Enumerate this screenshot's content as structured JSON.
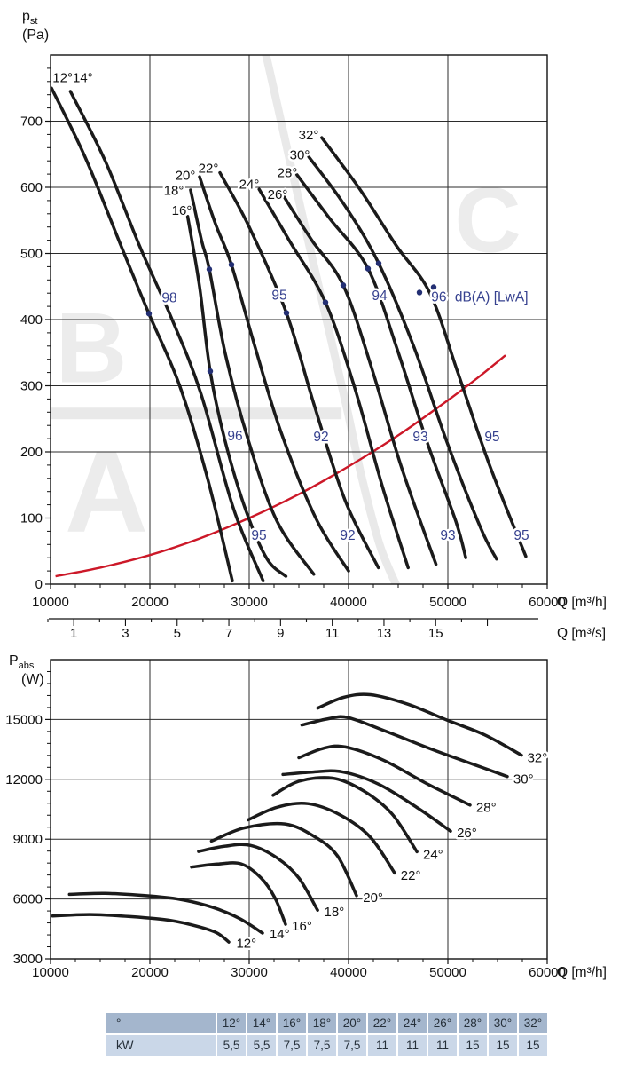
{
  "labels": {
    "pst_main": "p",
    "pst_sub": "st",
    "pst_unit": "(Pa)",
    "pabs_main": "P",
    "pabs_sub": "abs",
    "pabs_unit": "(W)"
  },
  "colors": {
    "curve": "#1b1b1b",
    "grid": "#2b2b2b",
    "border": "#111111",
    "red": "#cc1828",
    "blue": "#36418f",
    "dot": "#232f73",
    "zone": "#ececec",
    "band": "#e9e9e9",
    "table_header_bg": "#a4b6cd",
    "table_row_bg": "#cad7e8",
    "table_text": "#26303a"
  },
  "chart_data": [
    {
      "id": "pressure_chart",
      "type": "line",
      "title": "",
      "ylabel": "p_st (Pa)",
      "xlabel": "Q [m³/h]",
      "x2label": "Q [m³/s]",
      "xlim": [
        10000,
        60000
      ],
      "ylim": [
        0,
        800
      ],
      "grid": true,
      "xticks": [
        10000,
        20000,
        30000,
        40000,
        50000,
        60000
      ],
      "yticks": [
        0,
        100,
        200,
        300,
        400,
        500,
        600,
        700
      ],
      "x_minor_step": 2500,
      "y_minor_step": 20,
      "x2ticks": [
        1,
        3,
        5,
        7,
        9,
        11,
        13,
        15
      ],
      "series": [
        {
          "name": "12°",
          "points": [
            [
              10100,
              750
            ],
            [
              13500,
              645
            ],
            [
              17000,
              515
            ],
            [
              19900,
              409
            ],
            [
              23000,
              300
            ],
            [
              25800,
              160
            ],
            [
              28300,
              5
            ]
          ]
        },
        {
          "name": "14°",
          "points": [
            [
              12000,
              745
            ],
            [
              15500,
              640
            ],
            [
              19000,
              510
            ],
            [
              22100,
              405
            ],
            [
              25100,
              290
            ],
            [
              28400,
              115
            ],
            [
              31400,
              5
            ]
          ]
        },
        {
          "name": "16°",
          "points": [
            [
              23800,
              556
            ],
            [
              25000,
              450
            ],
            [
              26070,
              322
            ],
            [
              27600,
              215
            ],
            [
              29700,
              110
            ],
            [
              31800,
              38
            ],
            [
              33700,
              12
            ]
          ]
        },
        {
          "name": "18°",
          "points": [
            [
              24100,
              596
            ],
            [
              25200,
              520
            ],
            [
              25980,
              476
            ],
            [
              27600,
              348
            ],
            [
              29900,
              218
            ],
            [
              32800,
              95
            ],
            [
              36500,
              15
            ]
          ]
        },
        {
          "name": "20°",
          "points": [
            [
              25000,
              616
            ],
            [
              26600,
              545
            ],
            [
              28210,
              483
            ],
            [
              30600,
              358
            ],
            [
              33200,
              230
            ],
            [
              36700,
              100
            ],
            [
              40000,
              20
            ]
          ]
        },
        {
          "name": "22°",
          "points": [
            [
              27050,
              622
            ],
            [
              30000,
              540
            ],
            [
              33750,
              410
            ],
            [
              36600,
              268
            ],
            [
              39700,
              125
            ],
            [
              43000,
              25
            ]
          ]
        },
        {
          "name": "24°",
          "points": [
            [
              31000,
              597
            ],
            [
              34100,
              518
            ],
            [
              37680,
              426
            ],
            [
              40600,
              298
            ],
            [
              43400,
              148
            ],
            [
              46000,
              25
            ]
          ]
        },
        {
          "name": "26°",
          "points": [
            [
              33500,
              586
            ],
            [
              36300,
              520
            ],
            [
              39460,
              452
            ],
            [
              42300,
              328
            ],
            [
              45300,
              178
            ],
            [
              48800,
              30
            ]
          ]
        },
        {
          "name": "28°",
          "points": [
            [
              34800,
              619
            ],
            [
              38100,
              553
            ],
            [
              41960,
              477
            ],
            [
              44900,
              355
            ],
            [
              47900,
              215
            ],
            [
              50800,
              95
            ],
            [
              51800,
              40
            ]
          ]
        },
        {
          "name": "30°",
          "points": [
            [
              36000,
              646
            ],
            [
              39600,
              573
            ],
            [
              43040,
              485
            ],
            [
              46600,
              358
            ],
            [
              49900,
              215
            ],
            [
              53300,
              85
            ],
            [
              54900,
              38
            ]
          ]
        },
        {
          "name": "32°",
          "points": [
            [
              37300,
              675
            ],
            [
              41100,
              598
            ],
            [
              44800,
              512
            ],
            [
              48200,
              440
            ],
            [
              51000,
              320
            ],
            [
              54200,
              180
            ],
            [
              57850,
              42
            ]
          ]
        }
      ],
      "series_labels": [
        {
          "text": "12°14°",
          "q": 12232,
          "p": 766
        },
        {
          "text": "16°",
          "q": 23214,
          "p": 565
        },
        {
          "text": "18°",
          "q": 22411,
          "p": 595
        },
        {
          "text": "20°",
          "q": 23571,
          "p": 618
        },
        {
          "text": "22°",
          "q": 25893,
          "p": 629
        },
        {
          "text": "24°",
          "q": 30000,
          "p": 605
        },
        {
          "text": "26°",
          "q": 32857,
          "p": 589
        },
        {
          "text": "28°",
          "q": 33839,
          "p": 622
        },
        {
          "text": "30°",
          "q": 35089,
          "p": 649
        },
        {
          "text": "32°",
          "q": 35982,
          "p": 679
        }
      ],
      "system_curve": {
        "name": "system-resistance-curve",
        "points": [
          [
            10500,
            12
          ],
          [
            15000,
            25
          ],
          [
            20000,
            44
          ],
          [
            25000,
            69
          ],
          [
            30000,
            100
          ],
          [
            35000,
            136
          ],
          [
            40000,
            178
          ],
          [
            45000,
            225
          ],
          [
            50000,
            278
          ],
          [
            53000,
            312
          ],
          [
            55800,
            346
          ]
        ]
      },
      "noise_labels": [
        {
          "text": "98",
          "q": 21960,
          "p": 433
        },
        {
          "text": "95",
          "q": 33040,
          "p": 437
        },
        {
          "text": "94",
          "q": 43130,
          "p": 436
        },
        {
          "text": "96",
          "q": 49100,
          "p": 434
        },
        {
          "text": "dB(A) [LwA]",
          "q": 50700,
          "p": 434,
          "anchor": "start"
        },
        {
          "text": "96",
          "q": 28570,
          "p": 224
        },
        {
          "text": "92",
          "q": 37230,
          "p": 223
        },
        {
          "text": "93",
          "q": 47230,
          "p": 223
        },
        {
          "text": "95",
          "q": 54460,
          "p": 223
        },
        {
          "text": "95",
          "q": 30980,
          "p": 74
        },
        {
          "text": "92",
          "q": 39910,
          "p": 74
        },
        {
          "text": "93",
          "q": 50000,
          "p": 74
        },
        {
          "text": "95",
          "q": 57410,
          "p": 74
        }
      ],
      "noise_dots": [
        [
          19911,
          409
        ],
        [
          26071,
          322
        ],
        [
          25982,
          476
        ],
        [
          28214,
          483
        ],
        [
          33750,
          410
        ],
        [
          37679,
          426
        ],
        [
          39464,
          452
        ],
        [
          41964,
          477
        ],
        [
          43036,
          485
        ],
        [
          47143,
          441
        ],
        [
          48571,
          449
        ]
      ],
      "zones": {
        "letters": [
          {
            "text": "B",
            "q": 14107,
            "p": 357,
            "size": 112
          },
          {
            "text": "A",
            "q": 15625,
            "p": 140,
            "size": 130
          },
          {
            "text": "C",
            "q": 54018,
            "p": 550,
            "size": 104
          }
        ],
        "h_band": {
          "q1": 10000,
          "q2": 39300,
          "p": 258
        },
        "diag_band": [
          [
            31696,
            800
          ],
          [
            32857,
            723
          ],
          [
            34286,
            627
          ],
          [
            36161,
            505
          ],
          [
            38036,
            383
          ],
          [
            39821,
            267
          ],
          [
            41339,
            161
          ],
          [
            43125,
            60
          ],
          [
            44900,
            -5
          ]
        ]
      }
    },
    {
      "id": "power_chart",
      "type": "line",
      "title": "",
      "ylabel": "P_abs (W)",
      "xlabel": "Q [m³/h]",
      "xlim": [
        10000,
        60000
      ],
      "ylim": [
        3000,
        18000
      ],
      "grid": true,
      "xticks": [
        10000,
        20000,
        30000,
        40000,
        50000,
        60000
      ],
      "yticks": [
        3000,
        6000,
        9000,
        12000,
        15000
      ],
      "x_minor_step": 2500,
      "y_minor_step": 600,
      "series": [
        {
          "name": "12°",
          "points": [
            [
              10200,
              5150
            ],
            [
              14000,
              5220
            ],
            [
              18000,
              5120
            ],
            [
              22000,
              4930
            ],
            [
              25000,
              4600
            ],
            [
              26800,
              4280
            ],
            [
              27950,
              3840
            ]
          ]
        },
        {
          "name": "14°",
          "points": [
            [
              11900,
              6230
            ],
            [
              15500,
              6280
            ],
            [
              19500,
              6170
            ],
            [
              23000,
              5980
            ],
            [
              26200,
              5600
            ],
            [
              29000,
              5030
            ],
            [
              31340,
              4290
            ]
          ]
        },
        {
          "name": "16°",
          "points": [
            [
              24200,
              7600
            ],
            [
              26800,
              7750
            ],
            [
              29200,
              7760
            ],
            [
              31200,
              7050
            ],
            [
              32600,
              6050
            ],
            [
              33660,
              4730
            ]
          ]
        },
        {
          "name": "18°",
          "points": [
            [
              24900,
              8380
            ],
            [
              27500,
              8640
            ],
            [
              30100,
              8690
            ],
            [
              32800,
              8060
            ],
            [
              35000,
              7050
            ],
            [
              36880,
              5440
            ]
          ]
        },
        {
          "name": "20°",
          "points": [
            [
              26200,
              8900
            ],
            [
              29500,
              9560
            ],
            [
              33600,
              9760
            ],
            [
              36600,
              9120
            ],
            [
              38900,
              8150
            ],
            [
              40800,
              6170
            ]
          ]
        },
        {
          "name": "22°",
          "points": [
            [
              29900,
              9970
            ],
            [
              32800,
              10600
            ],
            [
              35900,
              10780
            ],
            [
              39200,
              10200
            ],
            [
              42200,
              9100
            ],
            [
              44640,
              7300
            ]
          ]
        },
        {
          "name": "24°",
          "points": [
            [
              32400,
              11200
            ],
            [
              35000,
              11900
            ],
            [
              38400,
              12060
            ],
            [
              41500,
              11420
            ],
            [
              44400,
              10250
            ],
            [
              46880,
              8370
            ]
          ]
        },
        {
          "name": "26°",
          "points": [
            [
              33400,
              12240
            ],
            [
              36300,
              12360
            ],
            [
              39300,
              12380
            ],
            [
              43000,
              11760
            ],
            [
              47000,
              10550
            ],
            [
              50270,
              9400
            ]
          ]
        },
        {
          "name": "28°",
          "points": [
            [
              35000,
              13080
            ],
            [
              37500,
              13560
            ],
            [
              39700,
              13620
            ],
            [
              43500,
              12960
            ],
            [
              48000,
              11750
            ],
            [
              52230,
              10710
            ]
          ]
        },
        {
          "name": "30°",
          "points": [
            [
              35300,
              14720
            ],
            [
              38000,
              15040
            ],
            [
              40000,
              15090
            ],
            [
              44000,
              14360
            ],
            [
              48500,
              13480
            ],
            [
              52500,
              12760
            ],
            [
              55980,
              12140
            ]
          ]
        },
        {
          "name": "32°",
          "points": [
            [
              36900,
              15570
            ],
            [
              39500,
              16110
            ],
            [
              42200,
              16240
            ],
            [
              46000,
              15760
            ],
            [
              50000,
              14950
            ],
            [
              53700,
              14230
            ],
            [
              57410,
              13210
            ]
          ]
        }
      ],
      "series_labels": [
        {
          "text": "12°",
          "q": 28700,
          "p": 3790
        },
        {
          "text": "14°",
          "q": 32050,
          "p": 4240
        },
        {
          "text": "16°",
          "q": 34300,
          "p": 4640
        },
        {
          "text": "18°",
          "q": 37550,
          "p": 5360
        },
        {
          "text": "20°",
          "q": 41450,
          "p": 6070
        },
        {
          "text": "22°",
          "q": 45250,
          "p": 7180
        },
        {
          "text": "24°",
          "q": 47500,
          "p": 8240
        },
        {
          "text": "26°",
          "q": 50900,
          "p": 9310
        },
        {
          "text": "28°",
          "q": 52850,
          "p": 10600
        },
        {
          "text": "30°",
          "q": 56600,
          "p": 12020
        },
        {
          "text": "32°",
          "q": 58000,
          "p": 13090
        }
      ]
    },
    {
      "id": "power_table",
      "type": "table",
      "rows": [
        {
          "header": "°",
          "cells": [
            "12°",
            "14°",
            "16°",
            "18°",
            "20°",
            "22°",
            "24°",
            "26°",
            "28°",
            "30°",
            "32°"
          ]
        },
        {
          "header": "kW",
          "cells": [
            "5,5",
            "5,5",
            "7,5",
            "7,5",
            "7,5",
            "11",
            "11",
            "11",
            "15",
            "15",
            "15"
          ]
        }
      ]
    }
  ]
}
